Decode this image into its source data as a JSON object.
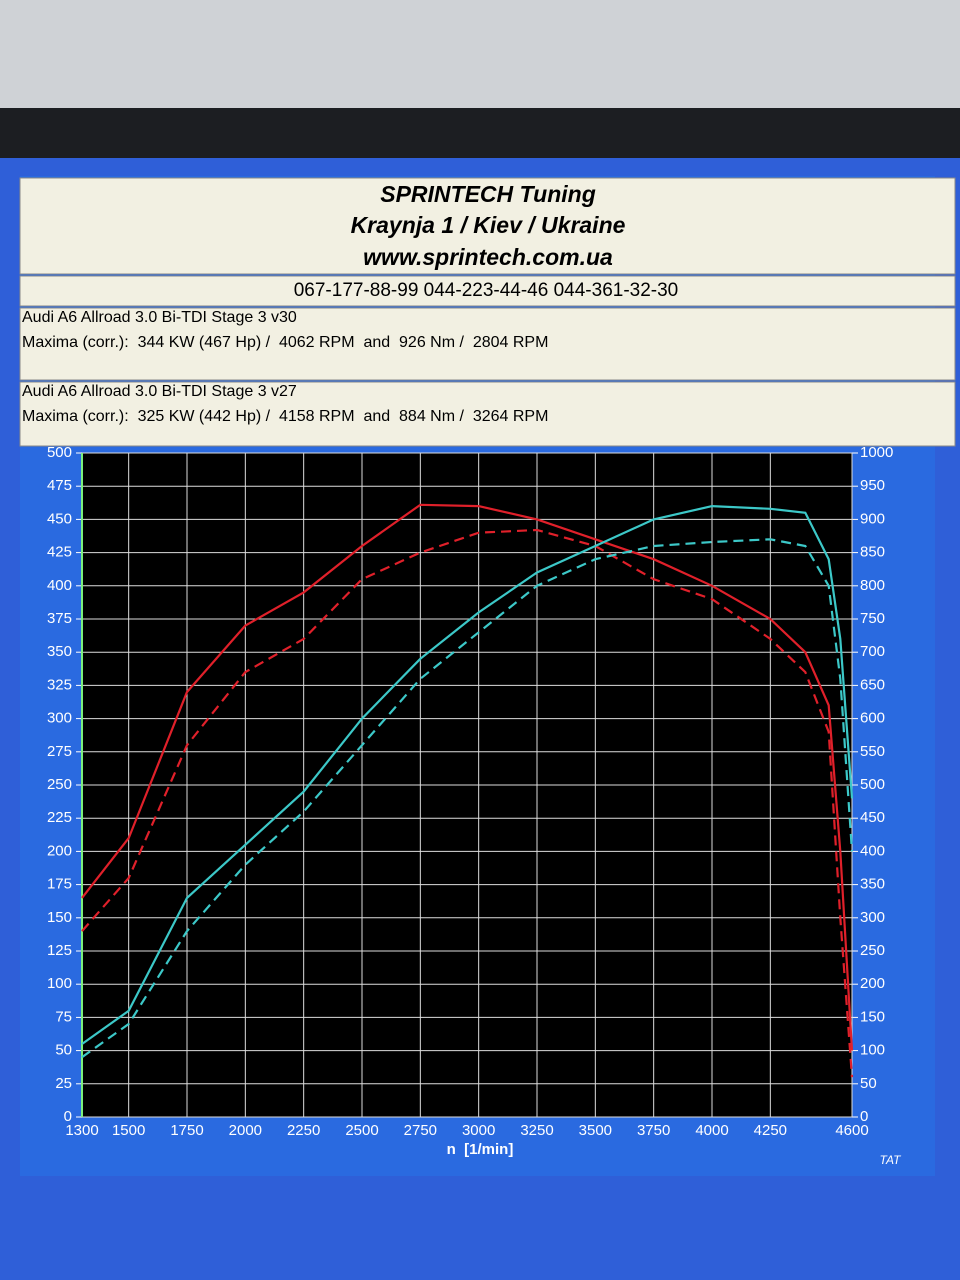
{
  "header": {
    "title": "SPRINTECH Tuning",
    "address": "Kraynja 1 / Kiev / Ukraine",
    "website": "www.sprintech.com.ua",
    "phones": "067-177-88-99 044-223-44-46 044-361-32-30"
  },
  "runs": [
    {
      "name": "Audi A6 Allroad 3.0 Bi-TDI Stage 3 v30",
      "maxima": "Maxima (corr.):  344 KW (467 Hp) /  4062 RPM  and  926 Nm /  2804 RPM"
    },
    {
      "name": "Audi A6 Allroad 3.0 Bi-TDI Stage 3 v27",
      "maxima": "Maxima (corr.):  325 KW (442 Hp) /  4158 RPM  and  884 Nm /  3264 RPM"
    }
  ],
  "chart_data": {
    "type": "line",
    "x_label": "n  [1/min]",
    "footer": "TAT",
    "grid": true,
    "x": [
      1300,
      1500,
      1750,
      2000,
      2250,
      2500,
      2750,
      3000,
      3250,
      3500,
      3750,
      4000,
      4250,
      4400,
      4500,
      4550,
      4600
    ],
    "xlim": [
      1300,
      4600
    ],
    "xticks": [
      1300,
      1500,
      1750,
      2000,
      2250,
      2500,
      2750,
      3000,
      3250,
      3500,
      3750,
      4000,
      4250,
      4600
    ],
    "ylim": [
      0,
      500
    ],
    "yticks": [
      0,
      25,
      50,
      75,
      100,
      125,
      150,
      175,
      200,
      225,
      250,
      275,
      300,
      325,
      350,
      375,
      400,
      425,
      450,
      475,
      500
    ],
    "y2lim": [
      0,
      1000
    ],
    "y2ticks": [
      0,
      50,
      100,
      150,
      200,
      250,
      300,
      350,
      400,
      450,
      500,
      550,
      600,
      650,
      700,
      750,
      800,
      850,
      900,
      950,
      1000
    ],
    "series": [
      {
        "color": "#e0202a",
        "dash": false,
        "axis": "y2",
        "values": [
          330,
          420,
          640,
          740,
          790,
          860,
          922,
          920,
          900,
          870,
          840,
          800,
          750,
          700,
          620,
          400,
          100
        ]
      },
      {
        "color": "#e0202a",
        "dash": true,
        "axis": "y2",
        "values": [
          280,
          360,
          560,
          670,
          720,
          810,
          850,
          880,
          884,
          860,
          810,
          780,
          720,
          670,
          580,
          300,
          60
        ]
      },
      {
        "color": "#3cc8c8",
        "dash": false,
        "values": [
          55,
          80,
          165,
          205,
          245,
          300,
          345,
          380,
          410,
          430,
          450,
          460,
          458,
          455,
          420,
          360,
          240
        ]
      },
      {
        "color": "#3cc8c8",
        "dash": true,
        "values": [
          45,
          70,
          140,
          190,
          230,
          280,
          330,
          365,
          400,
          420,
          430,
          433,
          435,
          430,
          400,
          330,
          200
        ]
      }
    ]
  }
}
